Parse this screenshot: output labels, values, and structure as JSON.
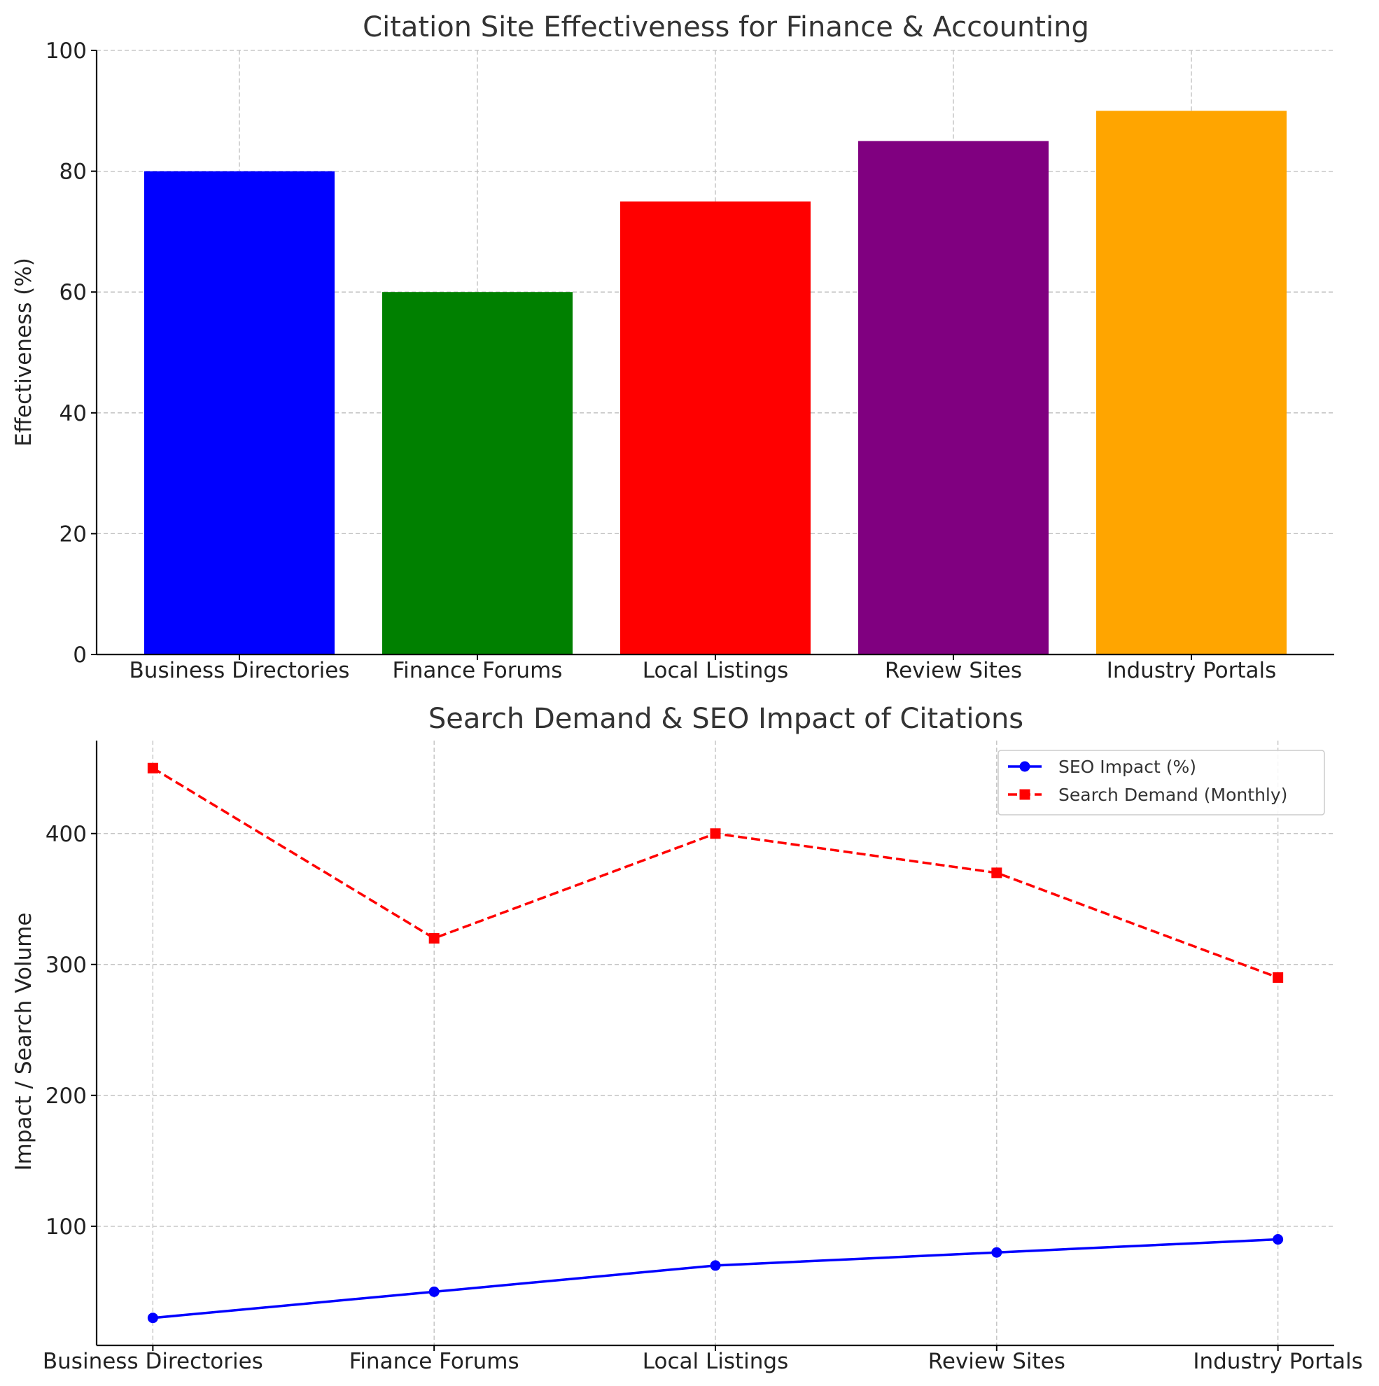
{
  "chart_data": [
    {
      "type": "bar",
      "title": "Citation Site Effectiveness for Finance & Accounting",
      "xlabel": "",
      "ylabel": "Effectiveness (%)",
      "categories": [
        "Business Directories",
        "Finance Forums",
        "Local Listings",
        "Review Sites",
        "Industry Portals"
      ],
      "values": [
        80,
        60,
        75,
        85,
        90
      ],
      "colors": [
        "#0000ff",
        "#008000",
        "#ff0000",
        "#800080",
        "#ffa500"
      ],
      "ylim": [
        0,
        100
      ],
      "yticks": [
        "0",
        "20",
        "40",
        "60",
        "80",
        "100"
      ],
      "grid": true
    },
    {
      "type": "line",
      "title": "Search Demand & SEO Impact of Citations",
      "xlabel": "",
      "ylabel": "Impact / Search Volume",
      "categories": [
        "Business Directories",
        "Finance Forums",
        "Local Listings",
        "Review Sites",
        "Industry Portals"
      ],
      "series": [
        {
          "name": "SEO Impact (%)",
          "values": [
            30,
            50,
            70,
            80,
            90
          ],
          "color": "#0000ff",
          "marker": "circle",
          "style": "solid"
        },
        {
          "name": "Search Demand (Monthly)",
          "values": [
            450,
            320,
            400,
            370,
            290
          ],
          "color": "#ff0000",
          "marker": "square",
          "style": "dashed"
        }
      ],
      "ylim": [
        9,
        471
      ],
      "yticks": [
        "100",
        "200",
        "300",
        "400"
      ],
      "legend": "top-right",
      "grid": true
    }
  ]
}
